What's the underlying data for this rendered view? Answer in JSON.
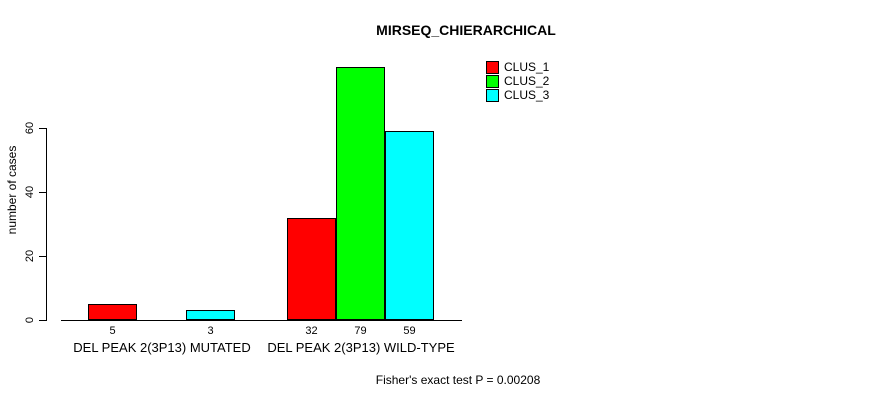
{
  "chart_data": {
    "type": "bar",
    "title": "MIRSEQ_CHIERARCHICAL",
    "ylabel": "number of cases",
    "xlabel": "",
    "categories": [
      "DEL PEAK 2(3P13) MUTATED",
      "DEL PEAK 2(3P13) WILD-TYPE"
    ],
    "series": [
      {
        "name": "CLUS_1",
        "color": "#FF0000",
        "values": [
          5,
          32
        ]
      },
      {
        "name": "CLUS_2",
        "color": "#00FF00",
        "values": [
          0,
          79
        ]
      },
      {
        "name": "CLUS_3",
        "color": "#00FFFF",
        "values": [
          3,
          59
        ]
      }
    ],
    "yticks": [
      0,
      20,
      40,
      60
    ],
    "ylim": [
      0,
      80
    ],
    "bar_value_labels": [
      [
        "5",
        "",
        "3"
      ],
      [
        "32",
        "79",
        "59"
      ]
    ],
    "legend_position": "top-right",
    "grid": false,
    "annotation": "Fisher's exact test P = 0.00208"
  }
}
